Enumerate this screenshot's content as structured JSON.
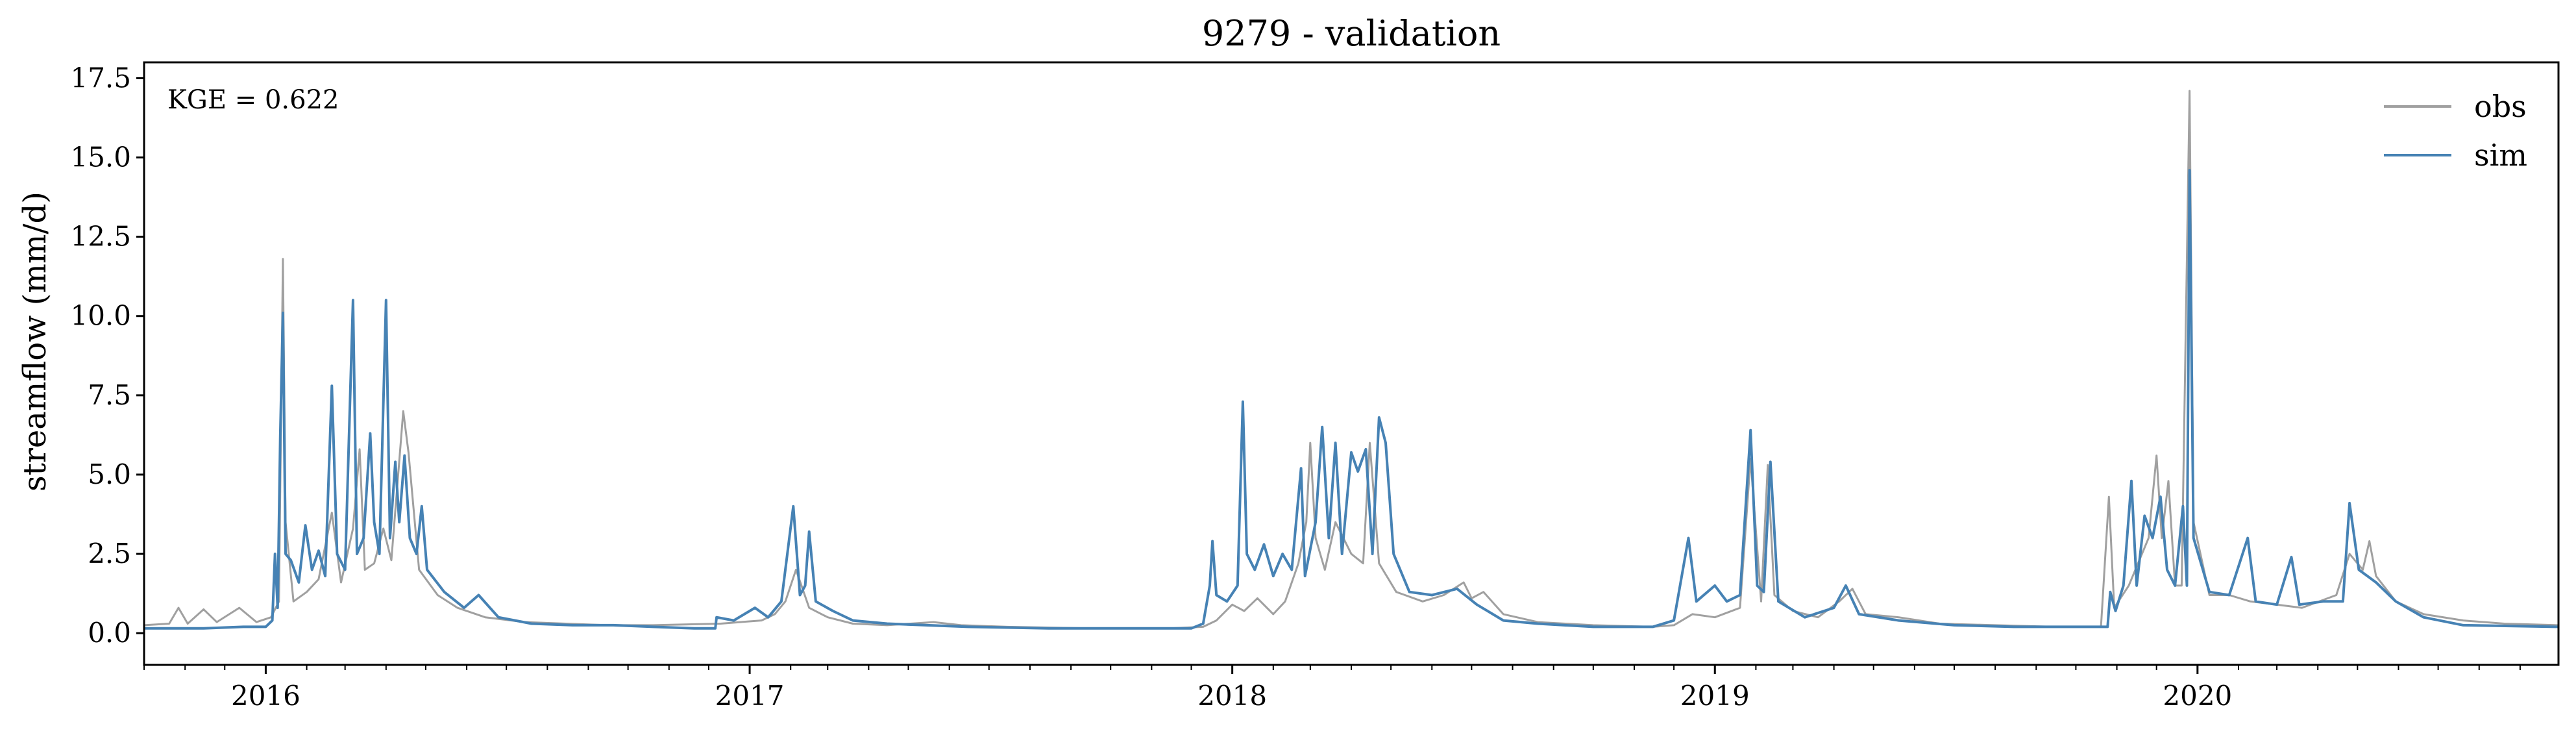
{
  "chart_data": {
    "type": "line",
    "title": "9279 - validation",
    "ylabel": "streamflow (mm/d)",
    "xlabel": "",
    "annotation": "KGE = 0.622",
    "legend_position": "top-right",
    "grid": false,
    "xlim": [
      "2015-10-01",
      "2020-09-30"
    ],
    "ylim": [
      -1.0,
      18.0
    ],
    "xticks": [
      "2016",
      "2017",
      "2018",
      "2019",
      "2020"
    ],
    "xtick_dates": [
      "2016-01-01",
      "2017-01-01",
      "2018-01-01",
      "2019-01-01",
      "2020-01-01"
    ],
    "yticks": [
      "0.0",
      "2.5",
      "5.0",
      "7.5",
      "10.0",
      "12.5",
      "15.0",
      "17.5"
    ],
    "ytick_values": [
      0.0,
      2.5,
      5.0,
      7.5,
      10.0,
      12.5,
      15.0,
      17.5
    ],
    "series": [
      {
        "name": "obs",
        "color": "#a0a0a0",
        "points": [
          [
            "2015-10-01",
            0.25
          ],
          [
            "2015-10-20",
            0.3
          ],
          [
            "2015-10-27",
            0.8
          ],
          [
            "2015-11-03",
            0.3
          ],
          [
            "2015-11-15",
            0.75
          ],
          [
            "2015-11-25",
            0.35
          ],
          [
            "2015-12-12",
            0.8
          ],
          [
            "2015-12-25",
            0.35
          ],
          [
            "2016-01-05",
            0.5
          ],
          [
            "2016-01-11",
            1.0
          ],
          [
            "2016-01-14",
            11.8
          ],
          [
            "2016-01-16",
            3.5
          ],
          [
            "2016-01-22",
            1.0
          ],
          [
            "2016-02-01",
            1.3
          ],
          [
            "2016-02-10",
            1.7
          ],
          [
            "2016-02-20",
            3.8
          ],
          [
            "2016-02-27",
            1.6
          ],
          [
            "2016-03-07",
            3.3
          ],
          [
            "2016-03-12",
            5.8
          ],
          [
            "2016-03-16",
            2.0
          ],
          [
            "2016-03-23",
            2.2
          ],
          [
            "2016-03-30",
            3.3
          ],
          [
            "2016-04-05",
            2.3
          ],
          [
            "2016-04-14",
            7.0
          ],
          [
            "2016-04-18",
            5.7
          ],
          [
            "2016-04-26",
            2.0
          ],
          [
            "2016-05-10",
            1.2
          ],
          [
            "2016-05-25",
            0.8
          ],
          [
            "2016-06-15",
            0.5
          ],
          [
            "2016-07-15",
            0.35
          ],
          [
            "2016-08-15",
            0.3
          ],
          [
            "2016-09-15",
            0.25
          ],
          [
            "2016-10-20",
            0.25
          ],
          [
            "2016-12-10",
            0.3
          ],
          [
            "2016-12-25",
            0.35
          ],
          [
            "2017-01-10",
            0.4
          ],
          [
            "2017-01-20",
            0.6
          ],
          [
            "2017-01-28",
            1.0
          ],
          [
            "2017-02-05",
            2.0
          ],
          [
            "2017-02-15",
            0.8
          ],
          [
            "2017-03-01",
            0.5
          ],
          [
            "2017-03-20",
            0.3
          ],
          [
            "2017-04-15",
            0.25
          ],
          [
            "2017-05-20",
            0.35
          ],
          [
            "2017-06-10",
            0.25
          ],
          [
            "2017-07-15",
            0.2
          ],
          [
            "2017-09-15",
            0.15
          ],
          [
            "2017-11-15",
            0.15
          ],
          [
            "2017-12-10",
            0.2
          ],
          [
            "2017-12-20",
            0.4
          ],
          [
            "2018-01-01",
            0.9
          ],
          [
            "2018-01-10",
            0.7
          ],
          [
            "2018-01-20",
            1.1
          ],
          [
            "2018-02-01",
            0.6
          ],
          [
            "2018-02-10",
            1.0
          ],
          [
            "2018-02-20",
            2.2
          ],
          [
            "2018-02-26",
            3.5
          ],
          [
            "2018-03-01",
            6.0
          ],
          [
            "2018-03-05",
            3.0
          ],
          [
            "2018-03-12",
            2.0
          ],
          [
            "2018-03-20",
            3.5
          ],
          [
            "2018-04-01",
            2.5
          ],
          [
            "2018-04-10",
            2.2
          ],
          [
            "2018-04-15",
            6.0
          ],
          [
            "2018-04-22",
            2.2
          ],
          [
            "2018-05-05",
            1.3
          ],
          [
            "2018-05-25",
            1.0
          ],
          [
            "2018-06-10",
            1.2
          ],
          [
            "2018-06-25",
            1.6
          ],
          [
            "2018-07-01",
            1.1
          ],
          [
            "2018-07-10",
            1.3
          ],
          [
            "2018-07-25",
            0.6
          ],
          [
            "2018-08-20",
            0.35
          ],
          [
            "2018-10-01",
            0.25
          ],
          [
            "2018-11-15",
            0.2
          ],
          [
            "2018-12-01",
            0.25
          ],
          [
            "2018-12-15",
            0.6
          ],
          [
            "2019-01-01",
            0.5
          ],
          [
            "2019-01-20",
            0.8
          ],
          [
            "2019-01-28",
            5.5
          ],
          [
            "2019-02-05",
            1.0
          ],
          [
            "2019-02-10",
            5.3
          ],
          [
            "2019-02-15",
            1.2
          ],
          [
            "2019-03-01",
            0.7
          ],
          [
            "2019-03-20",
            0.5
          ],
          [
            "2019-04-05",
            1.0
          ],
          [
            "2019-04-15",
            1.4
          ],
          [
            "2019-04-25",
            0.6
          ],
          [
            "2019-05-20",
            0.5
          ],
          [
            "2019-06-20",
            0.3
          ],
          [
            "2019-08-01",
            0.25
          ],
          [
            "2019-09-15",
            0.2
          ],
          [
            "2019-10-20",
            0.2
          ],
          [
            "2019-10-26",
            4.3
          ],
          [
            "2019-10-30",
            0.8
          ],
          [
            "2019-11-10",
            1.5
          ],
          [
            "2019-11-20",
            2.5
          ],
          [
            "2019-11-25",
            3.0
          ],
          [
            "2019-12-01",
            5.6
          ],
          [
            "2019-12-05",
            3.0
          ],
          [
            "2019-12-10",
            4.8
          ],
          [
            "2019-12-15",
            1.5
          ],
          [
            "2019-12-20",
            1.5
          ],
          [
            "2019-12-26",
            17.1
          ],
          [
            "2019-12-29",
            3.5
          ],
          [
            "2020-01-10",
            1.2
          ],
          [
            "2020-01-25",
            1.2
          ],
          [
            "2020-02-10",
            1.0
          ],
          [
            "2020-03-01",
            0.9
          ],
          [
            "2020-03-20",
            0.8
          ],
          [
            "2020-04-15",
            1.2
          ],
          [
            "2020-04-25",
            2.5
          ],
          [
            "2020-05-05",
            2.0
          ],
          [
            "2020-05-10",
            2.9
          ],
          [
            "2020-05-15",
            1.8
          ],
          [
            "2020-05-30",
            1.0
          ],
          [
            "2020-06-20",
            0.6
          ],
          [
            "2020-07-20",
            0.4
          ],
          [
            "2020-08-20",
            0.3
          ],
          [
            "2020-09-30",
            0.25
          ]
        ]
      },
      {
        "name": "sim",
        "color": "#4682b4",
        "points": [
          [
            "2015-10-01",
            0.15
          ],
          [
            "2015-11-15",
            0.15
          ],
          [
            "2015-12-15",
            0.2
          ],
          [
            "2016-01-01",
            0.2
          ],
          [
            "2016-01-06",
            0.4
          ],
          [
            "2016-01-08",
            2.5
          ],
          [
            "2016-01-10",
            0.8
          ],
          [
            "2016-01-12",
            6.2
          ],
          [
            "2016-01-14",
            10.1
          ],
          [
            "2016-01-16",
            2.5
          ],
          [
            "2016-01-20",
            2.3
          ],
          [
            "2016-01-26",
            1.6
          ],
          [
            "2016-01-31",
            3.4
          ],
          [
            "2016-02-05",
            2.0
          ],
          [
            "2016-02-10",
            2.6
          ],
          [
            "2016-02-15",
            1.8
          ],
          [
            "2016-02-20",
            7.8
          ],
          [
            "2016-02-24",
            2.5
          ],
          [
            "2016-03-01",
            2.0
          ],
          [
            "2016-03-07",
            10.5
          ],
          [
            "2016-03-10",
            2.5
          ],
          [
            "2016-03-15",
            3.0
          ],
          [
            "2016-03-20",
            6.3
          ],
          [
            "2016-03-23",
            3.5
          ],
          [
            "2016-03-27",
            2.5
          ],
          [
            "2016-04-01",
            10.5
          ],
          [
            "2016-04-04",
            3.0
          ],
          [
            "2016-04-08",
            5.4
          ],
          [
            "2016-04-11",
            3.5
          ],
          [
            "2016-04-15",
            5.6
          ],
          [
            "2016-04-19",
            3.0
          ],
          [
            "2016-04-24",
            2.5
          ],
          [
            "2016-04-28",
            4.0
          ],
          [
            "2016-05-02",
            2.0
          ],
          [
            "2016-05-15",
            1.3
          ],
          [
            "2016-05-30",
            0.8
          ],
          [
            "2016-06-10",
            1.2
          ],
          [
            "2016-06-25",
            0.5
          ],
          [
            "2016-07-20",
            0.3
          ],
          [
            "2016-08-20",
            0.25
          ],
          [
            "2016-09-20",
            0.25
          ],
          [
            "2016-10-20",
            0.2
          ],
          [
            "2016-11-20",
            0.15
          ],
          [
            "2016-12-06",
            0.15
          ],
          [
            "2016-12-07",
            0.5
          ],
          [
            "2016-12-20",
            0.4
          ],
          [
            "2017-01-05",
            0.8
          ],
          [
            "2017-01-15",
            0.5
          ],
          [
            "2017-01-25",
            1.0
          ],
          [
            "2017-02-03",
            4.0
          ],
          [
            "2017-02-08",
            1.2
          ],
          [
            "2017-02-12",
            1.5
          ],
          [
            "2017-02-15",
            3.2
          ],
          [
            "2017-02-20",
            1.0
          ],
          [
            "2017-03-05",
            0.7
          ],
          [
            "2017-03-20",
            0.4
          ],
          [
            "2017-04-15",
            0.3
          ],
          [
            "2017-06-15",
            0.2
          ],
          [
            "2017-08-15",
            0.15
          ],
          [
            "2017-10-15",
            0.15
          ],
          [
            "2017-12-01",
            0.15
          ],
          [
            "2017-12-10",
            0.3
          ],
          [
            "2017-12-15",
            1.5
          ],
          [
            "2017-12-17",
            2.9
          ],
          [
            "2017-12-20",
            1.2
          ],
          [
            "2017-12-28",
            1.0
          ],
          [
            "2018-01-05",
            1.5
          ],
          [
            "2018-01-09",
            7.3
          ],
          [
            "2018-01-12",
            2.5
          ],
          [
            "2018-01-18",
            2.0
          ],
          [
            "2018-01-25",
            2.8
          ],
          [
            "2018-02-01",
            1.8
          ],
          [
            "2018-02-08",
            2.5
          ],
          [
            "2018-02-15",
            2.0
          ],
          [
            "2018-02-22",
            5.2
          ],
          [
            "2018-02-25",
            1.8
          ],
          [
            "2018-03-05",
            3.5
          ],
          [
            "2018-03-10",
            6.5
          ],
          [
            "2018-03-15",
            3.0
          ],
          [
            "2018-03-20",
            6.0
          ],
          [
            "2018-03-25",
            2.5
          ],
          [
            "2018-04-01",
            5.7
          ],
          [
            "2018-04-06",
            5.1
          ],
          [
            "2018-04-12",
            5.8
          ],
          [
            "2018-04-17",
            2.5
          ],
          [
            "2018-04-22",
            6.8
          ],
          [
            "2018-04-27",
            6.0
          ],
          [
            "2018-05-03",
            2.5
          ],
          [
            "2018-05-15",
            1.3
          ],
          [
            "2018-06-01",
            1.2
          ],
          [
            "2018-06-20",
            1.4
          ],
          [
            "2018-07-05",
            0.9
          ],
          [
            "2018-07-25",
            0.4
          ],
          [
            "2018-08-20",
            0.3
          ],
          [
            "2018-10-01",
            0.2
          ],
          [
            "2018-11-15",
            0.2
          ],
          [
            "2018-12-01",
            0.4
          ],
          [
            "2018-12-12",
            3.0
          ],
          [
            "2018-12-18",
            1.0
          ],
          [
            "2019-01-01",
            1.5
          ],
          [
            "2019-01-10",
            1.0
          ],
          [
            "2019-01-20",
            1.2
          ],
          [
            "2019-01-28",
            6.4
          ],
          [
            "2019-02-02",
            1.5
          ],
          [
            "2019-02-07",
            1.3
          ],
          [
            "2019-02-12",
            5.4
          ],
          [
            "2019-02-18",
            1.0
          ],
          [
            "2019-03-10",
            0.5
          ],
          [
            "2019-04-01",
            0.8
          ],
          [
            "2019-04-10",
            1.5
          ],
          [
            "2019-04-20",
            0.6
          ],
          [
            "2019-05-20",
            0.4
          ],
          [
            "2019-07-01",
            0.25
          ],
          [
            "2019-08-15",
            0.2
          ],
          [
            "2019-10-01",
            0.2
          ],
          [
            "2019-10-25",
            0.2
          ],
          [
            "2019-10-27",
            1.3
          ],
          [
            "2019-10-31",
            0.7
          ],
          [
            "2019-11-06",
            1.5
          ],
          [
            "2019-11-12",
            4.8
          ],
          [
            "2019-11-16",
            1.5
          ],
          [
            "2019-11-22",
            3.7
          ],
          [
            "2019-11-28",
            3.0
          ],
          [
            "2019-12-04",
            4.3
          ],
          [
            "2019-12-09",
            2.0
          ],
          [
            "2019-12-15",
            1.5
          ],
          [
            "2019-12-21",
            4.0
          ],
          [
            "2019-12-24",
            1.5
          ],
          [
            "2019-12-26",
            14.6
          ],
          [
            "2019-12-29",
            3.0
          ],
          [
            "2020-01-10",
            1.3
          ],
          [
            "2020-01-25",
            1.2
          ],
          [
            "2020-02-08",
            3.0
          ],
          [
            "2020-02-14",
            1.0
          ],
          [
            "2020-03-01",
            0.9
          ],
          [
            "2020-03-12",
            2.4
          ],
          [
            "2020-03-18",
            0.9
          ],
          [
            "2020-04-05",
            1.0
          ],
          [
            "2020-04-20",
            1.0
          ],
          [
            "2020-04-25",
            4.1
          ],
          [
            "2020-05-02",
            2.0
          ],
          [
            "2020-05-15",
            1.6
          ],
          [
            "2020-05-30",
            1.0
          ],
          [
            "2020-06-20",
            0.5
          ],
          [
            "2020-07-20",
            0.25
          ],
          [
            "2020-09-30",
            0.2
          ]
        ]
      }
    ]
  }
}
